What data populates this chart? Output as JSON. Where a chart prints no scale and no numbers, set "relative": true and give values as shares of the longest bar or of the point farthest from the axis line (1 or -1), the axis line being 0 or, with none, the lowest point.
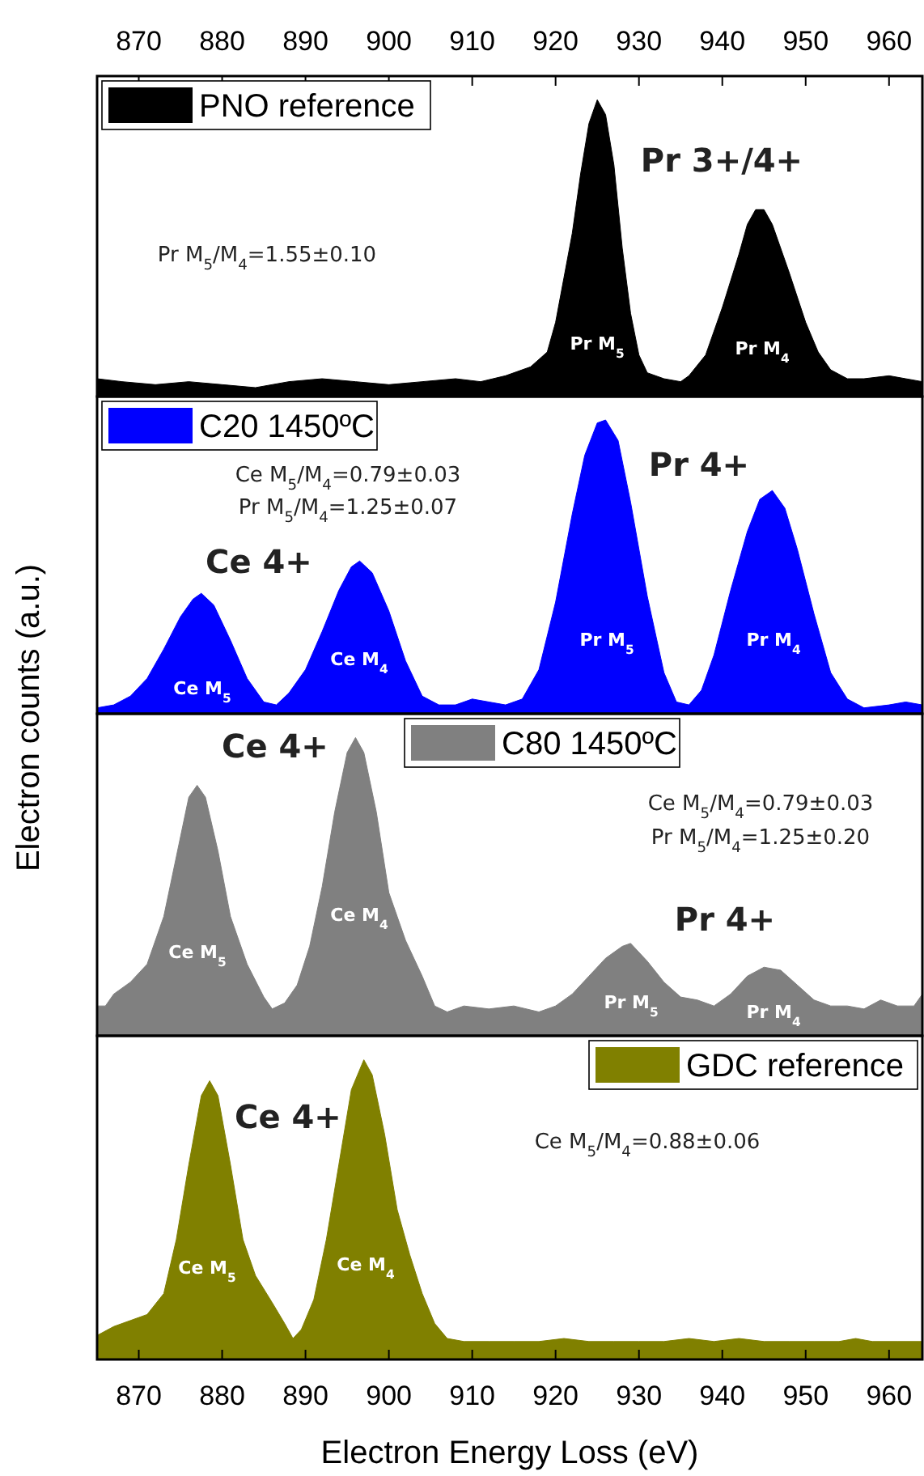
{
  "chart_data": [
    {
      "type": "area",
      "relative": true,
      "xlim": [
        865,
        964
      ],
      "x2lim": [
        865,
        964
      ],
      "x2ticks": [
        870,
        880,
        890,
        900,
        910,
        920,
        930,
        940,
        950,
        960
      ],
      "tick_labels": "x",
      "legend": "top left",
      "x": [
        865,
        868,
        872,
        876,
        880,
        884,
        888,
        892,
        896,
        900,
        904,
        908,
        911,
        914,
        917,
        919,
        920,
        921,
        922,
        923,
        924,
        925,
        926,
        927,
        928,
        929,
        930,
        931,
        933,
        935,
        936,
        938,
        940,
        942,
        943,
        944,
        945,
        946,
        948,
        950,
        951.5,
        953,
        955,
        957,
        960,
        962,
        964
      ],
      "series": [
        {
          "name": "PNO reference",
          "color": "#000000",
          "values": [
            0.06,
            0.05,
            0.04,
            0.05,
            0.04,
            0.03,
            0.05,
            0.06,
            0.05,
            0.04,
            0.05,
            0.06,
            0.05,
            0.07,
            0.1,
            0.15,
            0.25,
            0.4,
            0.55,
            0.75,
            0.92,
            1.0,
            0.95,
            0.78,
            0.5,
            0.28,
            0.14,
            0.08,
            0.06,
            0.05,
            0.07,
            0.14,
            0.3,
            0.48,
            0.58,
            0.63,
            0.63,
            0.58,
            0.42,
            0.25,
            0.15,
            0.09,
            0.06,
            0.06,
            0.07,
            0.06,
            0.05
          ]
        }
      ],
      "annotations": [
        "Pr 3+/4+",
        "Pr M$_{5}$/M$_{4}$=1.55±0.10",
        "Pr M$_{5}$",
        "Pr M$_{4}$"
      ]
    },
    {
      "type": "area",
      "relative": true,
      "xlim": [
        865,
        964
      ],
      "tick_labels": false,
      "legend": "top left",
      "ylabel": "Electron counts (a.u.)",
      "x": [
        865,
        867,
        869,
        871,
        873,
        875,
        876.5,
        877.5,
        879,
        881,
        883,
        885,
        886.5,
        888,
        890,
        892,
        894,
        895.5,
        896.5,
        898,
        900,
        902,
        904,
        906,
        908,
        910,
        912,
        914,
        916,
        918,
        920,
        922,
        923.5,
        925,
        926,
        927.5,
        929,
        931,
        933,
        934.5,
        936,
        937.5,
        939,
        941,
        943,
        944.5,
        946,
        947.5,
        949,
        951,
        953,
        955,
        957,
        960,
        962,
        964
      ],
      "series": [
        {
          "name": "C20 1450ºC",
          "color": "#0000ff",
          "values": [
            0.02,
            0.03,
            0.06,
            0.12,
            0.22,
            0.33,
            0.39,
            0.41,
            0.37,
            0.25,
            0.12,
            0.04,
            0.03,
            0.07,
            0.15,
            0.28,
            0.42,
            0.5,
            0.52,
            0.48,
            0.35,
            0.18,
            0.06,
            0.03,
            0.03,
            0.05,
            0.04,
            0.03,
            0.05,
            0.15,
            0.38,
            0.68,
            0.88,
            0.99,
            1.0,
            0.93,
            0.72,
            0.4,
            0.14,
            0.04,
            0.03,
            0.08,
            0.2,
            0.42,
            0.62,
            0.73,
            0.76,
            0.7,
            0.56,
            0.34,
            0.14,
            0.05,
            0.02,
            0.03,
            0.04,
            0.03
          ]
        }
      ],
      "annotations": [
        "Ce 4+",
        "Ce M$_{5}$/M$_{4}$=0.79±0.03",
        "Pr M$_{5}$/M$_{4}$=1.25±0.07",
        "Pr 4+",
        "Ce M$_{5}$",
        "Ce M$_{4}$",
        "Pr M$_{5}$",
        "Pr M$_{4}$"
      ]
    },
    {
      "type": "area",
      "relative": true,
      "xlim": [
        865,
        964
      ],
      "tick_labels": false,
      "legend": "top",
      "x": [
        865,
        866,
        867,
        869,
        871,
        873,
        874.5,
        876,
        877,
        878,
        879.5,
        881,
        883,
        885,
        886,
        887.5,
        889,
        890.5,
        892,
        893.5,
        895,
        896,
        897,
        898.5,
        900,
        902,
        904,
        905.5,
        907,
        909,
        912,
        915,
        918,
        920,
        922,
        924,
        926,
        928,
        929,
        931,
        933,
        935,
        937,
        939,
        941,
        943,
        945,
        947,
        949,
        951,
        953,
        955,
        957,
        959,
        961,
        963,
        964
      ],
      "series": [
        {
          "name": "C80 1450ºC",
          "color": "#808080",
          "values": [
            0.1,
            0.1,
            0.14,
            0.18,
            0.24,
            0.4,
            0.6,
            0.8,
            0.84,
            0.8,
            0.62,
            0.4,
            0.24,
            0.13,
            0.09,
            0.11,
            0.17,
            0.3,
            0.5,
            0.75,
            0.95,
            1.0,
            0.95,
            0.75,
            0.48,
            0.32,
            0.2,
            0.1,
            0.08,
            0.1,
            0.09,
            0.1,
            0.08,
            0.1,
            0.14,
            0.2,
            0.26,
            0.3,
            0.31,
            0.25,
            0.18,
            0.13,
            0.12,
            0.1,
            0.14,
            0.2,
            0.23,
            0.22,
            0.17,
            0.12,
            0.1,
            0.1,
            0.09,
            0.12,
            0.1,
            0.1,
            0.14
          ]
        }
      ],
      "annotations": [
        "Ce 4+",
        "Ce M$_{5}$/M$_{4}$=0.79±0.03",
        "Pr M$_{5}$/M$_{4}$=1.25±0.20",
        "Pr 4+",
        "Ce M$_{5}$",
        "Ce M$_{4}$",
        "Pr M$_{5}$",
        "Pr M$_{4}$"
      ]
    },
    {
      "type": "area",
      "relative": true,
      "xlim": [
        865,
        964
      ],
      "xticks": [
        870,
        880,
        890,
        900,
        910,
        920,
        930,
        940,
        950,
        960
      ],
      "tick_labels": "x",
      "legend": "top right",
      "xlabel": "Electron Energy Loss (eV)",
      "x": [
        865,
        867,
        869,
        871,
        873,
        874.5,
        876,
        877.5,
        878.5,
        879.5,
        881,
        882.5,
        884,
        886,
        887.5,
        888.5,
        889.5,
        891,
        892.5,
        894,
        895.5,
        897,
        898,
        899.5,
        901,
        902.5,
        904,
        905.5,
        907,
        909,
        912,
        915,
        918,
        921,
        924,
        927,
        930,
        933,
        936,
        939,
        942,
        945,
        948,
        951,
        954,
        956,
        958,
        961,
        964
      ],
      "series": [
        {
          "name": "GDC reference",
          "color": "#808000",
          "values": [
            0.08,
            0.11,
            0.13,
            0.15,
            0.22,
            0.4,
            0.65,
            0.88,
            0.93,
            0.88,
            0.65,
            0.4,
            0.28,
            0.19,
            0.12,
            0.07,
            0.1,
            0.2,
            0.4,
            0.65,
            0.9,
            1.0,
            0.95,
            0.75,
            0.5,
            0.35,
            0.22,
            0.12,
            0.07,
            0.06,
            0.06,
            0.06,
            0.06,
            0.07,
            0.06,
            0.06,
            0.06,
            0.06,
            0.07,
            0.06,
            0.07,
            0.06,
            0.06,
            0.06,
            0.06,
            0.07,
            0.06,
            0.06,
            0.06
          ]
        }
      ],
      "annotations": [
        "Ce 4+",
        "Ce M$_{5}$/M$_{4}$=0.88±0.06",
        "Ce M$_{5}$",
        "Ce M$_{4}$"
      ]
    }
  ]
}
